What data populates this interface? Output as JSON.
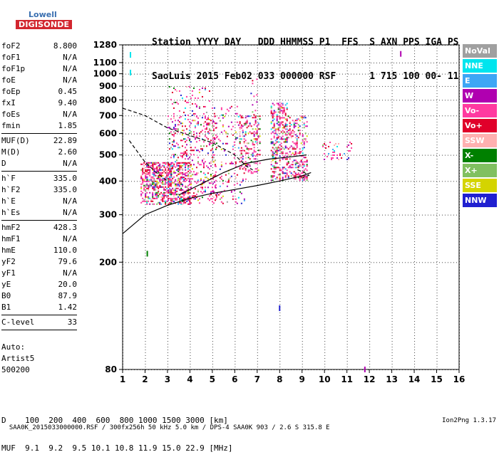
{
  "logo": {
    "line1": "Lowell",
    "line2": "DIGISONDE"
  },
  "header": {
    "line1": "Station YYYY DAY   DDD HHMMSS P1  FFS  S AXN PPS IGA PS",
    "line2": "SaoLuis 2015 Feb02 033 000000 RSF      1 715 100 00- 11"
  },
  "params": [
    {
      "group": [
        {
          "name": "foF2",
          "value": "8.800"
        },
        {
          "name": "foF1",
          "value": "N/A"
        },
        {
          "name": "foF1p",
          "value": "N/A"
        },
        {
          "name": "foE",
          "value": "N/A"
        },
        {
          "name": "foEp",
          "value": "0.45"
        },
        {
          "name": "fxI",
          "value": "9.40"
        },
        {
          "name": "foEs",
          "value": "N/A"
        },
        {
          "name": "fmin",
          "value": "1.85"
        }
      ]
    },
    {
      "group": [
        {
          "name": "MUF(D)",
          "value": "22.89"
        },
        {
          "name": "M(D)",
          "value": "2.60"
        },
        {
          "name": "D",
          "value": "N/A"
        }
      ]
    },
    {
      "group": [
        {
          "name": "h`F",
          "value": "335.0"
        },
        {
          "name": "h`F2",
          "value": "335.0"
        },
        {
          "name": "h`E",
          "value": "N/A"
        },
        {
          "name": "h`Es",
          "value": "N/A"
        }
      ]
    },
    {
      "group": [
        {
          "name": "hmF2",
          "value": "428.3"
        },
        {
          "name": "hmF1",
          "value": "N/A"
        },
        {
          "name": "hmE",
          "value": "110.0"
        },
        {
          "name": "yF2",
          "value": "79.6"
        },
        {
          "name": "yF1",
          "value": "N/A"
        },
        {
          "name": "yE",
          "value": "20.0"
        },
        {
          "name": "B0",
          "value": "87.9"
        },
        {
          "name": "B1",
          "value": "1.42"
        }
      ]
    },
    {
      "group": [
        {
          "name": "C-level",
          "value": "33"
        }
      ]
    }
  ],
  "auto": {
    "line1": "Auto:",
    "line2": "Artist5",
    "line3": "500200"
  },
  "dtable": {
    "row1": "D    100  200  400  600  800 1000 1500 3000 [km]",
    "row2": "MUF  9.1  9.2  9.5 10.1 10.8 11.9 15.0 22.9 [MHz]"
  },
  "footer": {
    "left": "SAA0K_2015033000000.RSF / 300fx256h 50 kHz 5.0 km / DPS-4 SAA0K 903 / 2.6 S 315.8 E",
    "right": "Ion2Png 1.3.17"
  },
  "legend": [
    {
      "label": "NoVal",
      "color": "#a0a0a0"
    },
    {
      "label": "NNE",
      "color": "#00e5ee"
    },
    {
      "label": "E",
      "color": "#3ea6f5"
    },
    {
      "label": "W",
      "color": "#b000b0"
    },
    {
      "label": "Vo-",
      "color": "#ff3aa0"
    },
    {
      "label": "Vo+",
      "color": "#e0002a"
    },
    {
      "label": "SSW",
      "color": "#ffb0b0"
    },
    {
      "label": "X-",
      "color": "#008000"
    },
    {
      "label": "X+",
      "color": "#80c060"
    },
    {
      "label": "SSE",
      "color": "#d4d400"
    },
    {
      "label": "NNW",
      "color": "#2020d0"
    }
  ],
  "chart_data": {
    "type": "scatter",
    "title": "",
    "xlabel": "",
    "ylabel": "",
    "xlim": [
      1,
      16
    ],
    "ylim": [
      80,
      1280
    ],
    "y_scale": "log",
    "x_ticks": [
      "1",
      "2",
      "3",
      "4",
      "5",
      "6",
      "7",
      "8",
      "9",
      "10",
      "11",
      "12",
      "13",
      "14",
      "15",
      "16"
    ],
    "y_ticks": [
      "80",
      "200",
      "300",
      "400",
      "500",
      "600",
      "700",
      "800",
      "900",
      "1000",
      "1100",
      "1280"
    ],
    "grid": true,
    "legend_position": "right",
    "echo_regions": [
      {
        "x": [
          1.8,
          4.0
        ],
        "y": [
          330,
          470
        ],
        "density": 0.85
      },
      {
        "x": [
          2.0,
          3.2
        ],
        "y": [
          380,
          470
        ],
        "density": 0.6
      },
      {
        "x": [
          3.0,
          5.2
        ],
        "y": [
          330,
          700
        ],
        "density": 0.35
      },
      {
        "x": [
          3.0,
          5.0
        ],
        "y": [
          650,
          900
        ],
        "density": 0.12
      },
      {
        "x": [
          5.0,
          6.5
        ],
        "y": [
          330,
          760
        ],
        "density": 0.18
      },
      {
        "x": [
          6.2,
          7.1
        ],
        "y": [
          430,
          700
        ],
        "density": 0.55
      },
      {
        "x": [
          6.7,
          7.0
        ],
        "y": [
          700,
          960
        ],
        "density": 0.25
      },
      {
        "x": [
          7.6,
          8.3
        ],
        "y": [
          480,
          780
        ],
        "density": 0.75
      },
      {
        "x": [
          8.3,
          9.2
        ],
        "y": [
          450,
          700
        ],
        "density": 0.5
      },
      {
        "x": [
          7.6,
          9.2
        ],
        "y": [
          400,
          480
        ],
        "density": 0.6
      },
      {
        "x": [
          9.9,
          11.2
        ],
        "y": [
          480,
          560
        ],
        "density": 0.3
      }
    ],
    "isolated_points": [
      {
        "x": 1.35,
        "y": 1175,
        "color": "#00e5ee"
      },
      {
        "x": 1.35,
        "y": 1010,
        "color": "#00e5ee"
      },
      {
        "x": 13.4,
        "y": 1185,
        "color": "#b000b0"
      },
      {
        "x": 8.0,
        "y": 135,
        "color": "#2020d0"
      },
      {
        "x": 2.1,
        "y": 215,
        "color": "#008000"
      },
      {
        "x": 11.8,
        "y": 80,
        "color": "#b000b0"
      }
    ],
    "profile_curves": [
      {
        "name": "",
        "style": "solid",
        "points": [
          [
            1.0,
            255
          ],
          [
            2.0,
            300
          ],
          [
            3.0,
            325
          ],
          [
            4.0,
            345
          ],
          [
            5.0,
            360
          ],
          [
            6.0,
            372
          ],
          [
            7.0,
            385
          ],
          [
            8.0,
            400
          ],
          [
            9.0,
            418
          ],
          [
            9.4,
            430
          ]
        ]
      },
      {
        "name": "",
        "style": "solid",
        "points": [
          [
            3.5,
            355
          ],
          [
            4.5,
            390
          ],
          [
            5.5,
            430
          ],
          [
            6.5,
            465
          ],
          [
            7.5,
            482
          ],
          [
            8.5,
            492
          ],
          [
            9.2,
            500
          ]
        ]
      },
      {
        "name": "",
        "style": "dashed",
        "points": [
          [
            1.0,
            745
          ],
          [
            2.0,
            700
          ],
          [
            3.0,
            630
          ],
          [
            4.0,
            590
          ],
          [
            5.0,
            555
          ],
          [
            6.0,
            500
          ],
          [
            6.5,
            455
          ],
          [
            6.8,
            440
          ]
        ]
      },
      {
        "name": "",
        "style": "dashed",
        "points": [
          [
            1.3,
            565
          ],
          [
            2.0,
            470
          ],
          [
            2.5,
            430
          ],
          [
            3.0,
            400
          ]
        ]
      },
      {
        "name": "",
        "style": "dashed",
        "points": [
          [
            8.8,
            440
          ],
          [
            9.1,
            430
          ],
          [
            9.3,
            420
          ],
          [
            9.0,
            410
          ]
        ]
      }
    ]
  }
}
